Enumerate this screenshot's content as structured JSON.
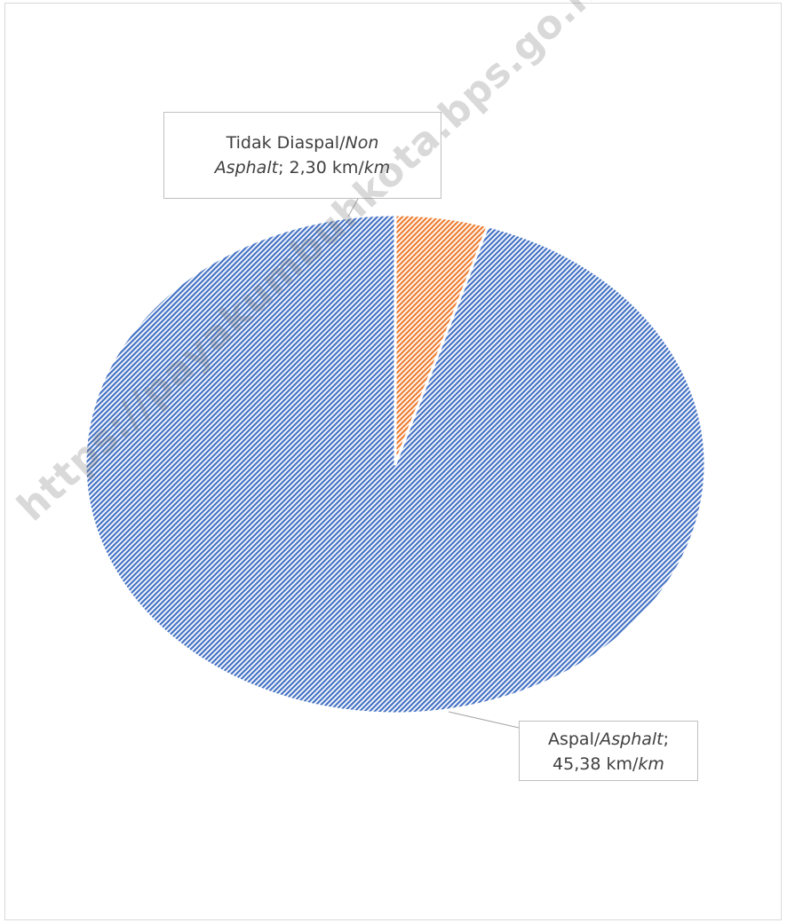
{
  "chart_data": {
    "type": "pie",
    "title": "",
    "slices": [
      {
        "label_main": "Aspal/",
        "label_italic": "Asphalt",
        "label_sep": ";",
        "value_text": "45,38",
        "unit_main": "km/",
        "unit_italic": "km",
        "value": 45.38,
        "color": "#4472c4"
      },
      {
        "label_main": "Tidak Diaspal/",
        "label_italic": "Non Asphalt",
        "label_sep": ";",
        "value_text": "2,30",
        "unit_main": "km/",
        "unit_italic": "km",
        "value": 2.3,
        "color": "#ed7d31"
      }
    ],
    "start_angle_deg": 0,
    "direction": "counterclockwise",
    "fill_pattern": "diagonal-hatch",
    "legend": "none"
  },
  "watermark": "https://payakumbuhkota.bps.go.id"
}
